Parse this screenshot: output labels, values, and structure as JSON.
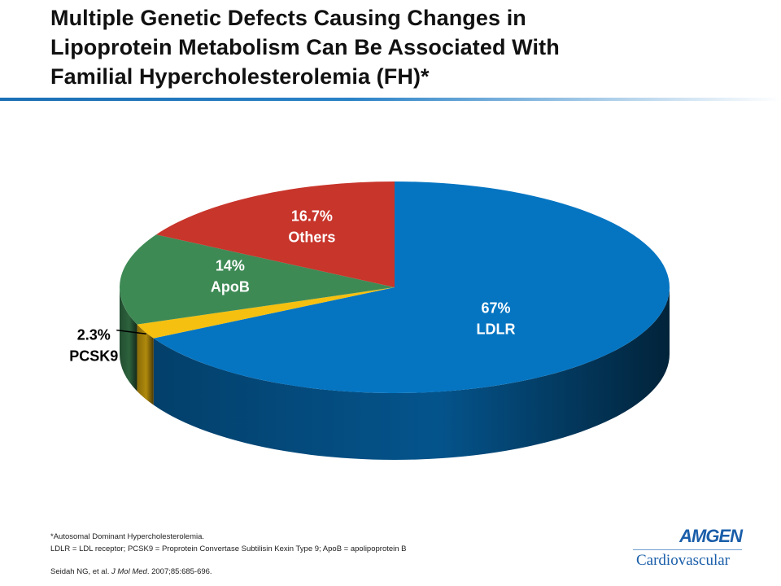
{
  "title_lines": [
    "Multiple Genetic Defects Causing Changes in",
    "Lipoprotein Metabolism Can Be Associated With",
    "Familial Hypercholesterolemia (FH)*"
  ],
  "chart_data": {
    "type": "pie",
    "style": "3d",
    "slices": [
      {
        "name": "LDLR",
        "percent_label": "67%",
        "value": 67,
        "color": "#0575c2"
      },
      {
        "name": "PCSK9",
        "percent_label": "2.3%",
        "value": 2.3,
        "color": "#f5c010"
      },
      {
        "name": "ApoB",
        "percent_label": "14%",
        "value": 14,
        "color": "#3e8a55"
      },
      {
        "name": "Others",
        "percent_label": "16.7%",
        "value": 16.7,
        "color": "#c8352b"
      }
    ]
  },
  "footnotes": {
    "line1": "*Autosomal Dominant Hypercholesterolemia.",
    "line2": "LDLR = LDL receptor; PCSK9 = Proprotein Convertase Subtilisin Kexin Type 9; ApoB = apolipoprotein B",
    "ref_authors": "Seidah NG, et al. ",
    "ref_journal": "J Mol Med",
    "ref_rest": ". 2007;85:685-696."
  },
  "logo": {
    "word": "AMGEN",
    "sub": "Cardiovascular"
  }
}
